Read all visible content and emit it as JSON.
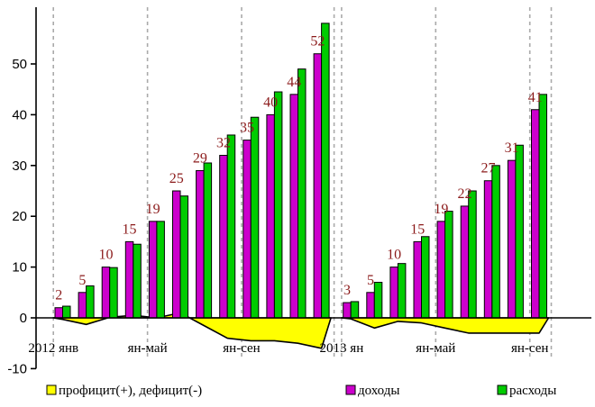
{
  "chart_data": {
    "type": "bar",
    "ylim": [
      -10,
      60
    ],
    "yticks": [
      -10,
      0,
      10,
      20,
      30,
      40,
      50
    ],
    "x_labels": [
      {
        "text": "2012 янв",
        "month": 0
      },
      {
        "text": "ян-май",
        "month": 4
      },
      {
        "text": "ян-сен",
        "month": 8
      },
      {
        "text": "2013 ян",
        "month": 12
      },
      {
        "text": "ян-май",
        "month": 16
      },
      {
        "text": "ян-сен",
        "month": 20
      }
    ],
    "series": [
      {
        "name": "доходы",
        "color": "#cc00cc",
        "values": [
          2,
          5,
          10,
          15,
          19,
          25,
          29,
          32,
          35,
          40,
          44,
          52,
          3,
          5,
          10,
          15,
          19,
          22,
          27,
          31,
          41
        ]
      },
      {
        "name": "расходы",
        "color": "#00cc00",
        "values": [
          2.3,
          6.3,
          9.9,
          14.5,
          19,
          24,
          30.5,
          36,
          39.5,
          44.5,
          49,
          58,
          3.2,
          7,
          10.7,
          16,
          21,
          25,
          30,
          34,
          44
        ]
      },
      {
        "name": "профицит(+), дефицит(-)",
        "color": "#ffff00",
        "type": "area",
        "values": [
          -0.3,
          -1.3,
          0.1,
          0.5,
          0,
          1,
          -1.5,
          -4,
          -4.5,
          -4.5,
          -5,
          -6,
          -0.2,
          -2,
          -0.7,
          -1,
          -2,
          -3,
          -3,
          -3,
          -3
        ]
      }
    ],
    "data_labels": [
      "2",
      "5",
      "10",
      "15",
      "19",
      "25",
      "29",
      "32",
      "35",
      "40",
      "44",
      "52",
      "3",
      "5",
      "10",
      "15",
      "19",
      "22",
      "27",
      "31",
      "41"
    ],
    "legend": {
      "placement": "bottom",
      "items": [
        {
          "label": "профицит(+), дефицит(-)",
          "color": "#ffff00"
        },
        {
          "label": "доходы",
          "color": "#cc00cc"
        },
        {
          "label": "расходы",
          "color": "#00cc00"
        }
      ]
    },
    "grid": "dashed vertical lines"
  }
}
